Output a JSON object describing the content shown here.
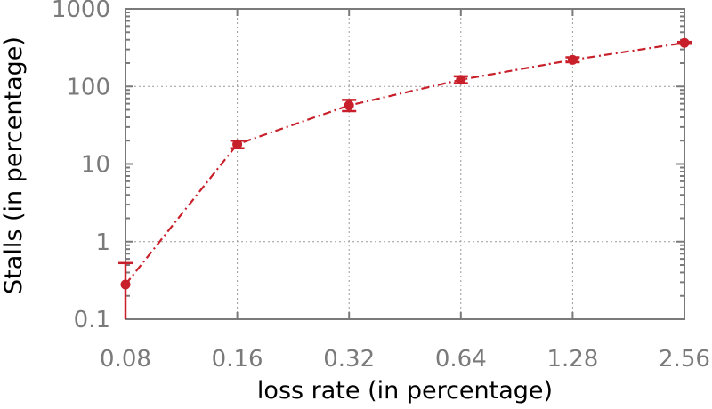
{
  "chart_data": {
    "type": "line",
    "xlabel": "loss rate (in percentage)",
    "ylabel": "Stalls (in percentage)",
    "x_scale": "log2",
    "y_scale": "log10",
    "xlim": [
      0.08,
      2.56
    ],
    "ylim": [
      0.1,
      1000
    ],
    "x_ticks": [
      "0.08",
      "0.16",
      "0.32",
      "0.64",
      "1.28",
      "2.56"
    ],
    "y_ticks": [
      "0.1",
      "1",
      "10",
      "100",
      "1000"
    ],
    "grid": true,
    "series": [
      {
        "x": [
          0.08,
          0.16,
          0.32,
          0.64,
          1.28,
          2.56
        ],
        "y": [
          0.28,
          18,
          57,
          122,
          220,
          365
        ],
        "err_low": [
          0.1,
          16,
          48,
          110,
          205,
          355
        ],
        "err_high": [
          0.53,
          20,
          67,
          135,
          237,
          375
        ],
        "color": "#c8202a",
        "line_style": "dash-dot",
        "marker": "circle"
      }
    ]
  }
}
